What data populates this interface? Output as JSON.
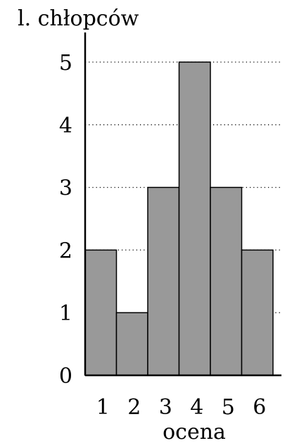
{
  "chart_data": {
    "type": "bar",
    "title": "",
    "ylabel": "l. chłopców",
    "xlabel": "ocena",
    "categories": [
      "1",
      "2",
      "3",
      "4",
      "5",
      "6"
    ],
    "values": [
      2,
      1,
      3,
      5,
      3,
      2
    ],
    "yticks": [
      "0",
      "1",
      "2",
      "3",
      "4",
      "5"
    ],
    "ylim": [
      0,
      5
    ],
    "grid": true,
    "bar_color": "#999999",
    "legend": "none"
  }
}
